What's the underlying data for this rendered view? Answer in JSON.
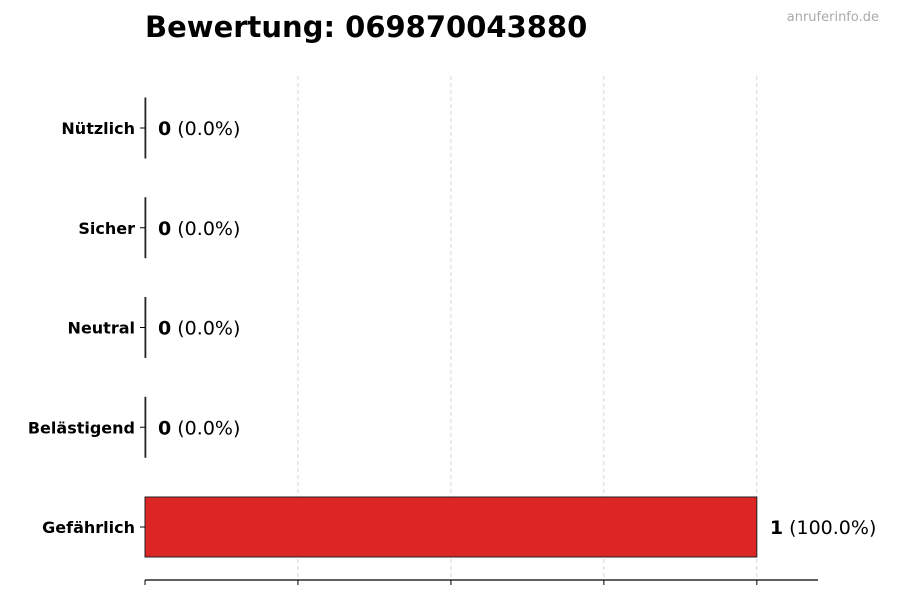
{
  "watermark": "anruferinfo.de",
  "chart_data": {
    "type": "bar",
    "orientation": "horizontal",
    "title": "Bewertung: 069870043880",
    "categories": [
      "Nützlich",
      "Sicher",
      "Neutral",
      "Belästigend",
      "Gefährlich"
    ],
    "values": [
      0,
      0,
      0,
      0,
      1
    ],
    "labels": [
      {
        "count": "0",
        "pct": "(0.0%)"
      },
      {
        "count": "0",
        "pct": "(0.0%)"
      },
      {
        "count": "0",
        "pct": "(0.0%)"
      },
      {
        "count": "0",
        "pct": "(0.0%)"
      },
      {
        "count": "1",
        "pct": "(100.0%)"
      }
    ],
    "bar_color": "#dc2626",
    "xlim": [
      0,
      1.1
    ],
    "xticks": [
      0,
      0.25,
      0.5,
      0.75,
      1
    ],
    "xtick_labels_shown": false,
    "grid": "vertical dashed",
    "xlabel": "",
    "ylabel": ""
  }
}
